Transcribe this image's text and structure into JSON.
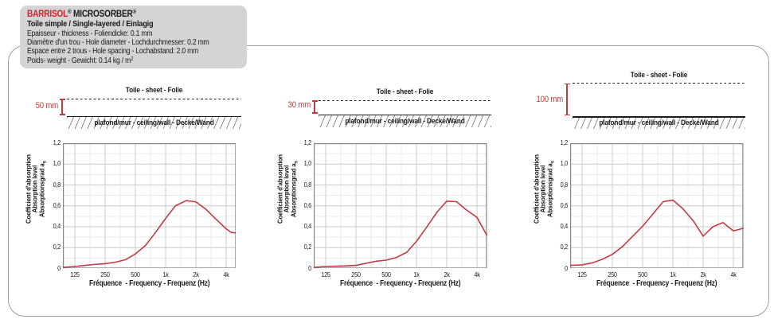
{
  "header": {
    "brand": "BARRISOL",
    "brand_mark": "®",
    "product": " MICROSORBER",
    "product_mark": "®",
    "subtitle": "Toile simple / Single-layered / Einlagig",
    "specs": [
      "Epaisseur - thickness - Foliendicke: 0.1 mm",
      "Diamètre d'un trou - Hole diameter - Lochdurchmesser: 0.2 mm",
      "Espace entre 2 trous - Hole spacing - Lochabstand: 2.0 mm",
      "Poids- weight - Gewicht: 0.14 kg / m"
    ],
    "weight_superscript": "2"
  },
  "panels": [
    {
      "gap_label": "50 mm",
      "sheet_label": "Toile - sheet - Folie",
      "wall_label": "plafond/mur - ceiling/wall - Decke/Wand"
    },
    {
      "gap_label": "30 mm",
      "sheet_label": "Toile - sheet - Folie",
      "wall_label": "plafond/mur - ceiling/wall - Decke/Wand"
    },
    {
      "gap_label": "100 mm",
      "sheet_label": "Toile - sheet - Folie",
      "wall_label": "plafond/mur - ceiling/wall - Decke/Wand"
    }
  ],
  "axes": {
    "xlabel": "Fréquence  - Frequency - Frequenz (Hz)",
    "ylabel_lines": [
      "Coefficient d'absorption",
      "Absorption level",
      "Absorptionsgrad a"
    ],
    "ylabel_subscript": "s",
    "x_ticks": [
      "125",
      "250",
      "500",
      "1k",
      "2k",
      "4k"
    ],
    "x_tick_freqs": [
      125,
      250,
      500,
      1000,
      2000,
      4000
    ],
    "y_ticks": [
      "0",
      "0,2",
      "0,4",
      "0,6",
      "0,8",
      "1,0",
      "1,2"
    ],
    "y_tick_values": [
      0,
      0.2,
      0.4,
      0.6,
      0.8,
      1.0,
      1.2
    ]
  },
  "chart_data": [
    {
      "type": "line",
      "air_gap_mm": 50,
      "x_scale": "log",
      "x_unit": "Hz",
      "xlim": [
        95,
        5000
      ],
      "ylim": [
        0,
        1.2
      ],
      "grid": true,
      "x": [
        95,
        125,
        160,
        200,
        250,
        315,
        400,
        500,
        630,
        800,
        1000,
        1250,
        1600,
        2000,
        2500,
        3150,
        4000,
        4500,
        5000
      ],
      "values": [
        0.01,
        0.02,
        0.03,
        0.04,
        0.046,
        0.06,
        0.085,
        0.14,
        0.22,
        0.35,
        0.48,
        0.6,
        0.65,
        0.638,
        0.57,
        0.475,
        0.38,
        0.345,
        0.34
      ]
    },
    {
      "type": "line",
      "air_gap_mm": 30,
      "x_scale": "log",
      "x_unit": "Hz",
      "xlim": [
        95,
        5000
      ],
      "ylim": [
        0,
        1.2
      ],
      "grid": true,
      "x": [
        95,
        125,
        160,
        200,
        250,
        315,
        400,
        500,
        630,
        800,
        1000,
        1250,
        1600,
        2000,
        2500,
        3150,
        4000,
        5000
      ],
      "values": [
        0.01,
        0.02,
        0.022,
        0.025,
        0.03,
        0.05,
        0.07,
        0.08,
        0.105,
        0.155,
        0.26,
        0.39,
        0.54,
        0.645,
        0.64,
        0.56,
        0.49,
        0.32
      ]
    },
    {
      "type": "line",
      "air_gap_mm": 100,
      "x_scale": "log",
      "x_unit": "Hz",
      "xlim": [
        95,
        5000
      ],
      "ylim": [
        0,
        1.2
      ],
      "grid": true,
      "x": [
        95,
        125,
        160,
        200,
        250,
        315,
        400,
        500,
        630,
        800,
        1000,
        1250,
        1600,
        2000,
        2500,
        3150,
        4000,
        5000
      ],
      "values": [
        0.03,
        0.035,
        0.055,
        0.09,
        0.135,
        0.21,
        0.31,
        0.405,
        0.52,
        0.64,
        0.655,
        0.575,
        0.455,
        0.31,
        0.4,
        0.44,
        0.36,
        0.385
      ]
    }
  ],
  "colors": {
    "brand_red": "#d2232a",
    "accent_red": "#c23b3b",
    "curve_red": "#c23b47",
    "grid_major": "#c9ccc9",
    "grid_minor": "#ebebeb",
    "plot_border": "#858585",
    "header_bg": "#d4d4d4",
    "line_black": "#1c1c1c",
    "hatch_gray": "#8d8d8d"
  }
}
